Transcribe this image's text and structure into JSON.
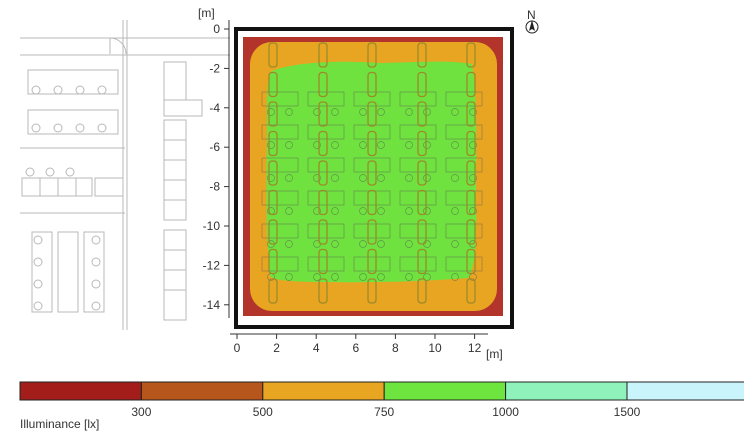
{
  "plot": {
    "y_unit": "[m]",
    "x_unit": "[m]",
    "y_ticks": [
      "0",
      "-2",
      "-4",
      "-6",
      "-8",
      "-10",
      "-12",
      "-14"
    ],
    "x_ticks": [
      "0",
      "2",
      "4",
      "6",
      "8",
      "10",
      "12"
    ],
    "compass_label": "N"
  },
  "legend": {
    "title": "Illuminance [lx]",
    "bands": [
      {
        "color": "#a31d1a"
      },
      {
        "color": "#b6561c"
      },
      {
        "color": "#e8a522"
      },
      {
        "color": "#6ee43e"
      },
      {
        "color": "#8ff2bb"
      },
      {
        "color": "#c9f4fb"
      }
    ],
    "thresholds": [
      "300",
      "500",
      "750",
      "1000",
      "1500"
    ]
  },
  "colors": {
    "red_zone": "#b3342b",
    "orange_zone": "#e8a522",
    "green_zone": "#6fe23f",
    "border": "#111111"
  }
}
